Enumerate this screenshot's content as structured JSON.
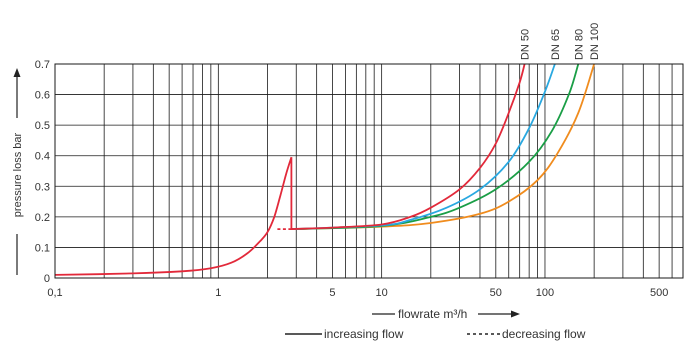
{
  "chart_data": {
    "type": "line",
    "xscale": "log",
    "xlim": [
      0.1,
      700
    ],
    "ylim": [
      0,
      0.7
    ],
    "xlabel": "flowrate m³/h",
    "ylabel": "pressure loss bar",
    "x_tick_labels": [
      {
        "value": 0.1,
        "label": "0,1"
      },
      {
        "value": 1,
        "label": "1"
      },
      {
        "value": 5,
        "label": "5"
      },
      {
        "value": 10,
        "label": "10"
      },
      {
        "value": 50,
        "label": "50"
      },
      {
        "value": 100,
        "label": "100"
      },
      {
        "value": 500,
        "label": "500"
      }
    ],
    "y_ticks": [
      0,
      0.1,
      0.2,
      0.3,
      0.4,
      0.5,
      0.6,
      0.7
    ],
    "grid": true,
    "legend": {
      "increasing": "increasing flow",
      "decreasing": "decreasing flow"
    },
    "series": [
      {
        "name": "DN 50",
        "color": "#e2293a",
        "x": [
          0.1,
          0.3,
          0.6,
          0.9,
          1.2,
          1.5,
          1.8,
          2.0,
          2.2,
          2.4,
          2.6,
          2.8
        ],
        "y": [
          0.01,
          0.015,
          0.022,
          0.032,
          0.05,
          0.08,
          0.12,
          0.15,
          0.2,
          0.27,
          0.34,
          0.395
        ]
      },
      {
        "name": "DN 50",
        "color": "#e2293a",
        "x": [
          2.8,
          2.8,
          5,
          10,
          15,
          20,
          30,
          40,
          50,
          60,
          70,
          75
        ],
        "y": [
          0.395,
          0.16,
          0.165,
          0.175,
          0.2,
          0.23,
          0.29,
          0.36,
          0.44,
          0.54,
          0.64,
          0.7
        ]
      },
      {
        "name": "DN 50",
        "color": "#e2293a",
        "dashed": true,
        "x": [
          2.3,
          2.8
        ],
        "y": [
          0.16,
          0.16
        ]
      },
      {
        "name": "DN 65",
        "color": "#29a8e0",
        "x": [
          2.8,
          10,
          15,
          25,
          40,
          60,
          80,
          100,
          115
        ],
        "y": [
          0.16,
          0.172,
          0.19,
          0.23,
          0.29,
          0.38,
          0.49,
          0.61,
          0.7
        ]
      },
      {
        "name": "DN 80",
        "color": "#1a9e46",
        "x": [
          2.8,
          10,
          20,
          30,
          50,
          80,
          110,
          140,
          160
        ],
        "y": [
          0.16,
          0.17,
          0.2,
          0.23,
          0.29,
          0.38,
          0.48,
          0.6,
          0.7
        ]
      },
      {
        "name": "DN 100",
        "color": "#f08c1e",
        "x": [
          2.8,
          10,
          20,
          40,
          60,
          90,
          120,
          160,
          200
        ],
        "y": [
          0.16,
          0.168,
          0.18,
          0.21,
          0.25,
          0.32,
          0.41,
          0.54,
          0.7
        ]
      }
    ]
  }
}
